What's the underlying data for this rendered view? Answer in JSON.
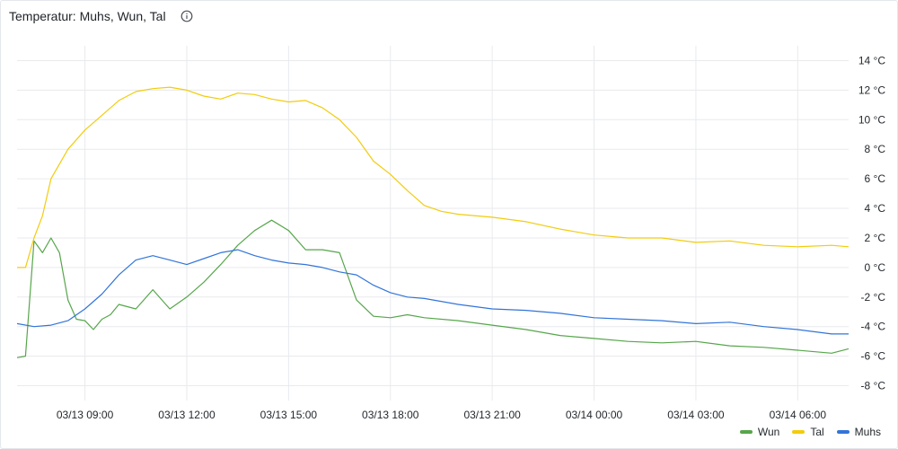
{
  "panel": {
    "title": "Temperatur: Muhs, Wun, Tal",
    "info_icon": "info-circle-icon"
  },
  "colors": {
    "Wun": "#56a64b",
    "Tal": "#f2cc0c",
    "Muhs": "#3274d9",
    "grid": "#e8eaed"
  },
  "chart_data": {
    "type": "line",
    "y_unit": "°C",
    "ylim": [
      -9,
      15
    ],
    "y_ticks": [
      -8,
      -6,
      -4,
      -2,
      0,
      2,
      4,
      6,
      8,
      10,
      12,
      14
    ],
    "y_tick_labels": [
      "-8 °C",
      "-6 °C",
      "-4 °C",
      "-2 °C",
      "0 °C",
      "2 °C",
      "4 °C",
      "6 °C",
      "8 °C",
      "10 °C",
      "12 °C",
      "14 °C"
    ],
    "y_axis_position": "right",
    "xlim": [
      "03/13 07:00",
      "03/14 07:30"
    ],
    "x_ticks": [
      "03/13 09:00",
      "03/13 12:00",
      "03/13 15:00",
      "03/13 18:00",
      "03/13 21:00",
      "03/14 00:00",
      "03/14 03:00",
      "03/14 06:00"
    ],
    "grid": true,
    "legend_position": "bottom-right",
    "series": [
      {
        "name": "Wun",
        "x": [
          "03/13 07:00",
          "03/13 07:15",
          "03/13 07:30",
          "03/13 07:45",
          "03/13 08:00",
          "03/13 08:15",
          "03/13 08:30",
          "03/13 08:45",
          "03/13 09:00",
          "03/13 09:15",
          "03/13 09:30",
          "03/13 09:45",
          "03/13 10:00",
          "03/13 10:30",
          "03/13 11:00",
          "03/13 11:30",
          "03/13 12:00",
          "03/13 12:30",
          "03/13 13:00",
          "03/13 13:30",
          "03/13 14:00",
          "03/13 14:30",
          "03/13 15:00",
          "03/13 15:30",
          "03/13 16:00",
          "03/13 16:30",
          "03/13 17:00",
          "03/13 17:30",
          "03/13 18:00",
          "03/13 18:30",
          "03/13 19:00",
          "03/13 20:00",
          "03/13 21:00",
          "03/13 22:00",
          "03/13 23:00",
          "03/14 00:00",
          "03/14 01:00",
          "03/14 02:00",
          "03/14 03:00",
          "03/14 04:00",
          "03/14 05:00",
          "03/14 06:00",
          "03/14 07:00",
          "03/14 07:30"
        ],
        "values": [
          -6.1,
          -6.0,
          1.8,
          1.0,
          2.0,
          1.0,
          -2.2,
          -3.5,
          -3.6,
          -4.2,
          -3.5,
          -3.2,
          -2.5,
          -2.8,
          -1.5,
          -2.8,
          -2.0,
          -1.0,
          0.2,
          1.5,
          2.5,
          3.2,
          2.5,
          1.2,
          1.2,
          1.0,
          -2.2,
          -3.3,
          -3.4,
          -3.2,
          -3.4,
          -3.6,
          -3.9,
          -4.2,
          -4.6,
          -4.8,
          -5.0,
          -5.1,
          -5.0,
          -5.3,
          -5.4,
          -5.6,
          -5.8,
          -5.5
        ]
      },
      {
        "name": "Tal",
        "x": [
          "03/13 07:00",
          "03/13 07:15",
          "03/13 07:30",
          "03/13 07:45",
          "03/13 08:00",
          "03/13 08:30",
          "03/13 09:00",
          "03/13 09:30",
          "03/13 10:00",
          "03/13 10:30",
          "03/13 11:00",
          "03/13 11:30",
          "03/13 12:00",
          "03/13 12:30",
          "03/13 13:00",
          "03/13 13:30",
          "03/13 14:00",
          "03/13 14:30",
          "03/13 15:00",
          "03/13 15:30",
          "03/13 16:00",
          "03/13 16:30",
          "03/13 17:00",
          "03/13 17:30",
          "03/13 18:00",
          "03/13 18:30",
          "03/13 19:00",
          "03/13 19:30",
          "03/13 20:00",
          "03/13 21:00",
          "03/13 22:00",
          "03/13 23:00",
          "03/14 00:00",
          "03/14 01:00",
          "03/14 02:00",
          "03/14 03:00",
          "03/14 04:00",
          "03/14 05:00",
          "03/14 06:00",
          "03/14 07:00",
          "03/14 07:30"
        ],
        "values": [
          0.0,
          0.0,
          2.0,
          3.5,
          6.0,
          8.0,
          9.3,
          10.3,
          11.3,
          11.9,
          12.1,
          12.2,
          12.0,
          11.6,
          11.4,
          11.8,
          11.7,
          11.4,
          11.2,
          11.3,
          10.8,
          10.0,
          8.8,
          7.2,
          6.3,
          5.2,
          4.2,
          3.8,
          3.6,
          3.4,
          3.1,
          2.6,
          2.2,
          2.0,
          2.0,
          1.7,
          1.8,
          1.5,
          1.4,
          1.5,
          1.4
        ]
      },
      {
        "name": "Muhs",
        "x": [
          "03/13 07:00",
          "03/13 07:30",
          "03/13 08:00",
          "03/13 08:30",
          "03/13 09:00",
          "03/13 09:30",
          "03/13 10:00",
          "03/13 10:30",
          "03/13 11:00",
          "03/13 11:30",
          "03/13 12:00",
          "03/13 12:30",
          "03/13 13:00",
          "03/13 13:30",
          "03/13 14:00",
          "03/13 14:30",
          "03/13 15:00",
          "03/13 15:30",
          "03/13 16:00",
          "03/13 16:30",
          "03/13 17:00",
          "03/13 17:30",
          "03/13 18:00",
          "03/13 18:30",
          "03/13 19:00",
          "03/13 20:00",
          "03/13 21:00",
          "03/13 22:00",
          "03/13 23:00",
          "03/14 00:00",
          "03/14 01:00",
          "03/14 02:00",
          "03/14 03:00",
          "03/14 04:00",
          "03/14 05:00",
          "03/14 06:00",
          "03/14 07:00",
          "03/14 07:30"
        ],
        "values": [
          -3.8,
          -4.0,
          -3.9,
          -3.6,
          -2.8,
          -1.8,
          -0.5,
          0.5,
          0.8,
          0.5,
          0.2,
          0.6,
          1.0,
          1.2,
          0.8,
          0.5,
          0.3,
          0.2,
          0.0,
          -0.3,
          -0.5,
          -1.2,
          -1.7,
          -2.0,
          -2.1,
          -2.5,
          -2.8,
          -2.9,
          -3.1,
          -3.4,
          -3.5,
          -3.6,
          -3.8,
          -3.7,
          -4.0,
          -4.2,
          -4.5,
          -4.5
        ]
      }
    ]
  },
  "legend": {
    "items": [
      "Wun",
      "Tal",
      "Muhs"
    ]
  }
}
